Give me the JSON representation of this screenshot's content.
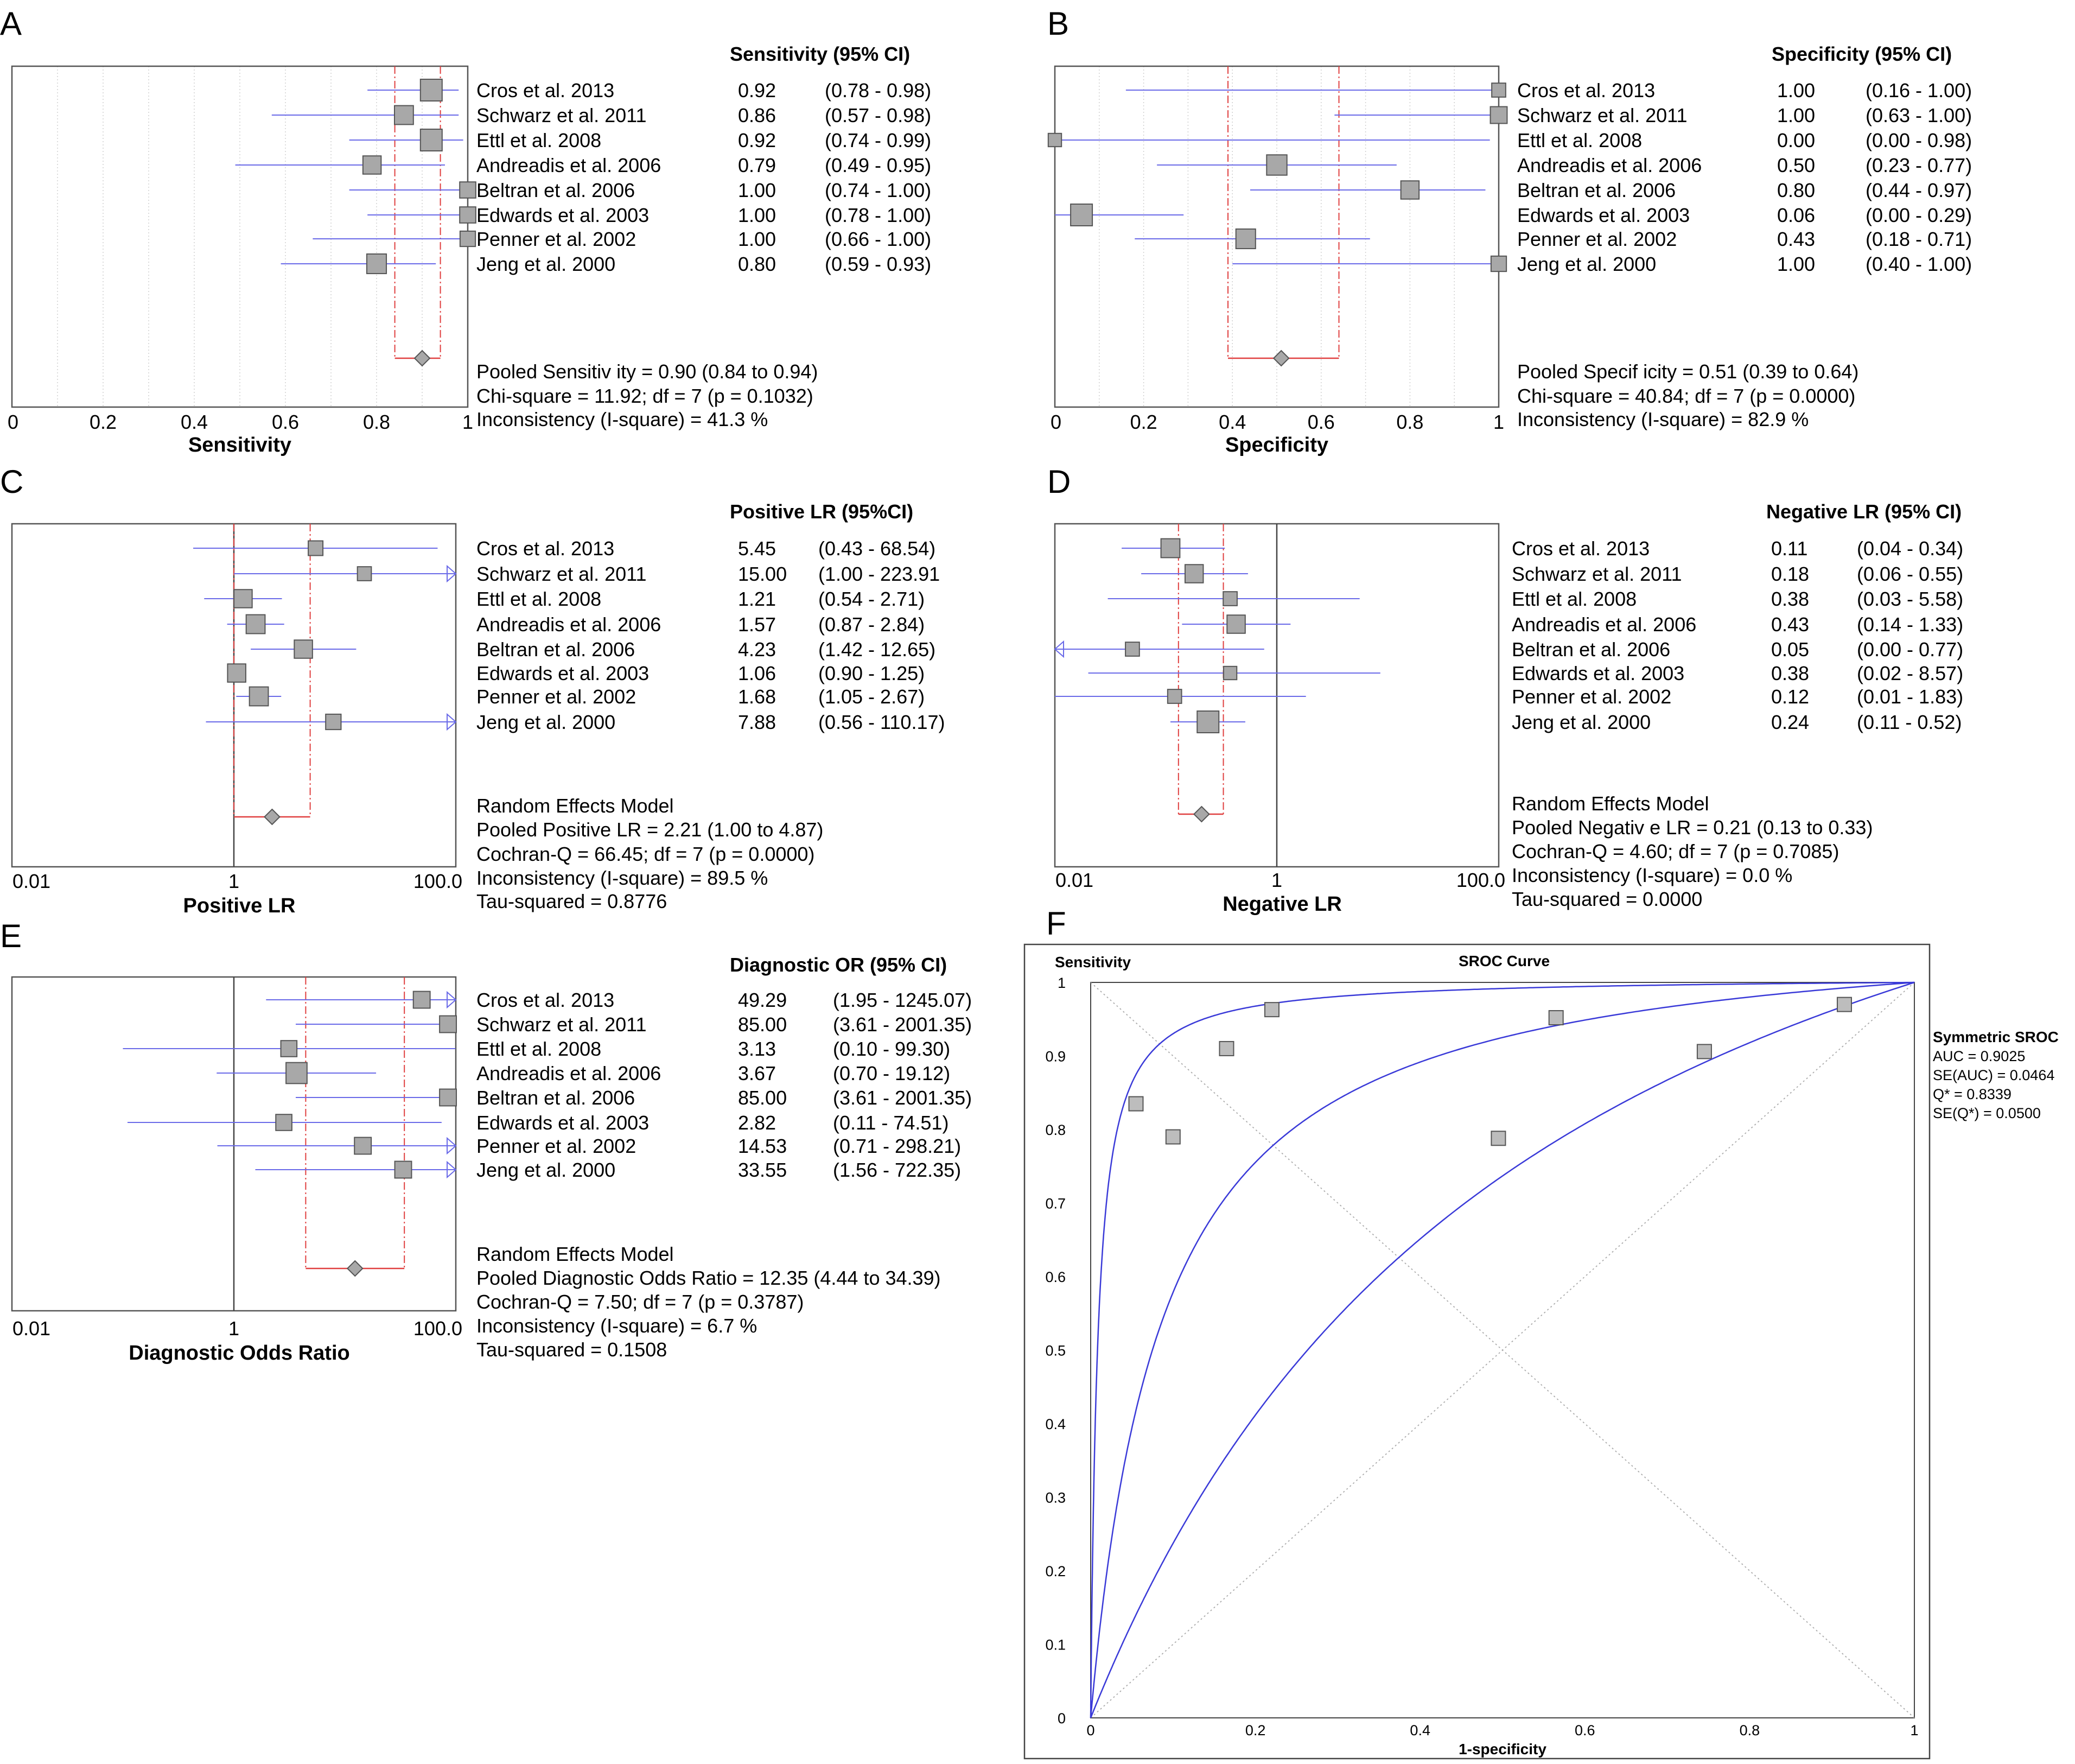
{
  "colors": {
    "ci_line": "#6a6ae8",
    "pooled_line": "#e04040",
    "marker_fill": "#a8a8a8",
    "marker_edge": "#555555",
    "grid": "#cfcfcf",
    "roc_curve": "#3a3ad8"
  },
  "studies": [
    "Cros et al. 2013",
    "Schwarz et al. 2011",
    "Ettl et al. 2008",
    "Andreadis et al. 2006",
    "Beltran et al. 2006",
    "Edwards et al. 2003",
    "Penner et al. 2002",
    "Jeng et al. 2000"
  ],
  "chart_data": [
    {
      "panel": "A",
      "type": "forest",
      "scale": "linear",
      "xlabel": "Sensitivity",
      "header": "Sensitivity (95% CI)",
      "ticks": [
        "0",
        "0.2",
        "0.4",
        "0.6",
        "0.8",
        "1"
      ],
      "xlim": [
        0,
        1
      ],
      "values": [
        0.92,
        0.86,
        0.92,
        0.79,
        1.0,
        1.0,
        1.0,
        0.8
      ],
      "ci_low": [
        0.78,
        0.57,
        0.74,
        0.49,
        0.74,
        0.78,
        0.66,
        0.59
      ],
      "ci_high": [
        0.98,
        0.98,
        0.99,
        0.95,
        1.0,
        1.0,
        1.0,
        0.93
      ],
      "weights": [
        1.0,
        0.8,
        1.0,
        0.75,
        0.6,
        0.6,
        0.55,
        0.85
      ],
      "pooled": 0.9,
      "pooled_ci": [
        0.84,
        0.94
      ],
      "ref_line": null,
      "text": {
        "est": [
          "0.92",
          "0.86",
          "0.92",
          "0.79",
          "1.00",
          "1.00",
          "1.00",
          "0.80"
        ],
        "ci": [
          "(0.78 - 0.98)",
          "(0.57 - 0.98)",
          "(0.74 - 0.99)",
          "(0.49 - 0.95)",
          "(0.74 - 1.00)",
          "(0.78 - 1.00)",
          "(0.66 - 1.00)",
          "(0.59 - 0.93)"
        ],
        "summary": [
          "Pooled Sensitiv ity = 0.90 (0.84 to 0.94)",
          "Chi-square = 11.92; df =  7 (p = 0.1032)",
          "Inconsistency  (I-square) = 41.3 %"
        ]
      }
    },
    {
      "panel": "B",
      "type": "forest",
      "scale": "linear",
      "xlabel": "Specificity",
      "header": "Specificity (95% CI)",
      "ticks": [
        "0",
        "0.2",
        "0.4",
        "0.6",
        "0.8",
        "1"
      ],
      "xlim": [
        0,
        1
      ],
      "values": [
        1.0,
        1.0,
        0.0,
        0.5,
        0.8,
        0.06,
        0.43,
        1.0
      ],
      "ci_low": [
        0.16,
        0.63,
        0.0,
        0.23,
        0.44,
        0.0,
        0.18,
        0.4
      ],
      "ci_high": [
        1.0,
        1.0,
        0.98,
        0.77,
        0.97,
        0.29,
        0.71,
        1.0
      ],
      "weights": [
        0.45,
        0.65,
        0.4,
        0.9,
        0.75,
        1.0,
        0.85,
        0.55
      ],
      "pooled": 0.51,
      "pooled_ci": [
        0.39,
        0.64
      ],
      "ref_line": null,
      "text": {
        "est": [
          "1.00",
          "1.00",
          "0.00",
          "0.50",
          "0.80",
          "0.06",
          "0.43",
          "1.00"
        ],
        "ci": [
          "(0.16 - 1.00)",
          "(0.63 - 1.00)",
          "(0.00 - 0.98)",
          "(0.23 - 0.77)",
          "(0.44 - 0.97)",
          "(0.00 - 0.29)",
          "(0.18 - 0.71)",
          "(0.40 - 1.00)"
        ],
        "summary": [
          "Pooled Specif icity = 0.51 (0.39 to 0.64)",
          "Chi-square = 40.84; df =  7 (p = 0.0000)",
          "Inconsistency  (I-square) = 82.9 %"
        ]
      }
    },
    {
      "panel": "C",
      "type": "forest",
      "scale": "log",
      "xlabel": "Positive LR",
      "header": "Positive LR (95%CI)",
      "ticks": [
        "0.01",
        "1",
        "100.0"
      ],
      "xlim": [
        0.01,
        100
      ],
      "values": [
        5.45,
        15.0,
        1.21,
        1.57,
        4.23,
        1.06,
        1.68,
        7.88
      ],
      "ci_low": [
        0.43,
        1.0,
        0.54,
        0.87,
        1.42,
        0.9,
        1.05,
        0.56
      ],
      "ci_high": [
        68.54,
        223.91,
        2.71,
        2.84,
        12.65,
        1.25,
        2.67,
        110.17
      ],
      "weights": [
        0.5,
        0.45,
        0.75,
        0.8,
        0.75,
        0.75,
        0.8,
        0.55
      ],
      "pooled": 2.21,
      "pooled_ci": [
        1.0,
        4.87
      ],
      "ref_line": 1,
      "text": {
        "est": [
          "5.45",
          "15.00",
          "1.21",
          "1.57",
          "4.23",
          "1.06",
          "1.68",
          "7.88"
        ],
        "ci": [
          "(0.43 - 68.54)",
          "(1.00 - 223.91",
          "(0.54 - 2.71)",
          "(0.87 - 2.84)",
          "(1.42 - 12.65)",
          "(0.90 - 1.25)",
          "(1.05 - 2.67)",
          "(0.56 - 110.17)"
        ],
        "summary": [
          "Random Effects Model",
          "Pooled Positive LR = 2.21 (1.00 to 4.87)",
          "Cochran-Q = 66.45; df =  7 (p = 0.0000)",
          "Inconsistency (I-square) = 89.5 %",
          "Tau-squared = 0.8776"
        ]
      }
    },
    {
      "panel": "D",
      "type": "forest",
      "scale": "log",
      "xlabel": "Negative LR",
      "header": "Negative LR (95% CI)",
      "ticks": [
        "0.01",
        "1",
        "100.0"
      ],
      "xlim": [
        0.01,
        100
      ],
      "values": [
        0.11,
        0.18,
        0.38,
        0.43,
        0.05,
        0.38,
        0.12,
        0.24
      ],
      "ci_low": [
        0.04,
        0.06,
        0.03,
        0.14,
        0.0,
        0.02,
        0.01,
        0.11
      ],
      "ci_high": [
        0.34,
        0.55,
        5.58,
        1.33,
        0.77,
        8.57,
        1.83,
        0.52
      ],
      "weights": [
        0.8,
        0.75,
        0.45,
        0.75,
        0.45,
        0.4,
        0.45,
        1.0
      ],
      "pooled": 0.21,
      "pooled_ci": [
        0.13,
        0.33
      ],
      "ref_line": 1,
      "text": {
        "est": [
          "0.11",
          "0.18",
          "0.38",
          "0.43",
          "0.05",
          "0.38",
          "0.12",
          "0.24"
        ],
        "ci": [
          "(0.04 - 0.34)",
          "(0.06 - 0.55)",
          "(0.03 - 5.58)",
          "(0.14 - 1.33)",
          "(0.00 - 0.77)",
          "(0.02 - 8.57)",
          "(0.01 - 1.83)",
          "(0.11 - 0.52)"
        ],
        "summary": [
          "Random Effects Model",
          "Pooled Negativ e LR = 0.21 (0.13 to 0.33)",
          "Cochran-Q = 4.60; df =  7 (p = 0.7085)",
          "Inconsistency  (I-square) = 0.0 %",
          "Tau-squared = 0.0000"
        ]
      }
    },
    {
      "panel": "E",
      "type": "forest",
      "scale": "log",
      "xlabel": "Diagnostic Odds Ratio",
      "header": "Diagnostic OR (95% CI)",
      "ticks": [
        "0.01",
        "1",
        "100.0"
      ],
      "xlim": [
        0.01,
        100
      ],
      "values": [
        49.29,
        85.0,
        3.13,
        3.67,
        85.0,
        2.82,
        14.53,
        33.55
      ],
      "ci_low": [
        1.95,
        3.61,
        0.1,
        0.7,
        3.61,
        0.11,
        0.71,
        1.56
      ],
      "ci_high": [
        1245.07,
        2001.35,
        99.3,
        19.12,
        2001.35,
        74.51,
        298.21,
        722.35
      ],
      "weights": [
        0.65,
        0.65,
        0.6,
        0.95,
        0.65,
        0.6,
        0.65,
        0.65
      ],
      "pooled": 12.35,
      "pooled_ci": [
        4.44,
        34.39
      ],
      "ref_line": 1,
      "text": {
        "est": [
          "49.29",
          "85.00",
          "3.13",
          "3.67",
          "85.00",
          "2.82",
          "14.53",
          "33.55"
        ],
        "ci": [
          "(1.95 - 1245.07)",
          "(3.61 - 2001.35)",
          "(0.10 - 99.30)",
          "(0.70 - 19.12)",
          "(3.61 - 2001.35)",
          "(0.11 - 74.51)",
          "(0.71 - 298.21)",
          "(1.56 - 722.35)"
        ],
        "summary": [
          "Random Effects Model",
          "Pooled Diagnostic Odds Ratio = 12.35 (4.44 to 34.39)",
          "Cochran-Q = 7.50; df =  7 (p = 0.3787)",
          "Inconsistency  (I-square) = 6.7 %",
          "Tau-squared = 0.1508"
        ]
      }
    },
    {
      "panel": "F",
      "type": "scatter",
      "title": "SROC Curve",
      "xlabel": "1-specificity",
      "ylabel": "Sensitivity",
      "xlim": [
        0,
        1
      ],
      "ylim": [
        0,
        1
      ],
      "xticks": [
        "0",
        "0.2",
        "0.4",
        "0.6",
        "0.8",
        "1"
      ],
      "yticks": [
        "0",
        "0.1",
        "0.2",
        "0.3",
        "0.4",
        "0.5",
        "0.6",
        "0.7",
        "0.8",
        "0.9",
        "1"
      ],
      "points": [
        [
          0.055,
          0.835
        ],
        [
          0.1,
          0.79
        ],
        [
          0.165,
          0.91
        ],
        [
          0.22,
          0.963
        ],
        [
          0.495,
          0.788
        ],
        [
          0.565,
          0.952
        ],
        [
          0.745,
          0.906
        ],
        [
          0.915,
          0.97
        ]
      ],
      "curve_dor": [
        2.8,
        12.35,
        120
      ],
      "legend": {
        "title": "Symmetric SROC",
        "lines": [
          "AUC = 0.9025",
          "SE(AUC) = 0.0464",
          "Q* = 0.8339",
          "SE(Q*) = 0.0500"
        ]
      }
    }
  ]
}
